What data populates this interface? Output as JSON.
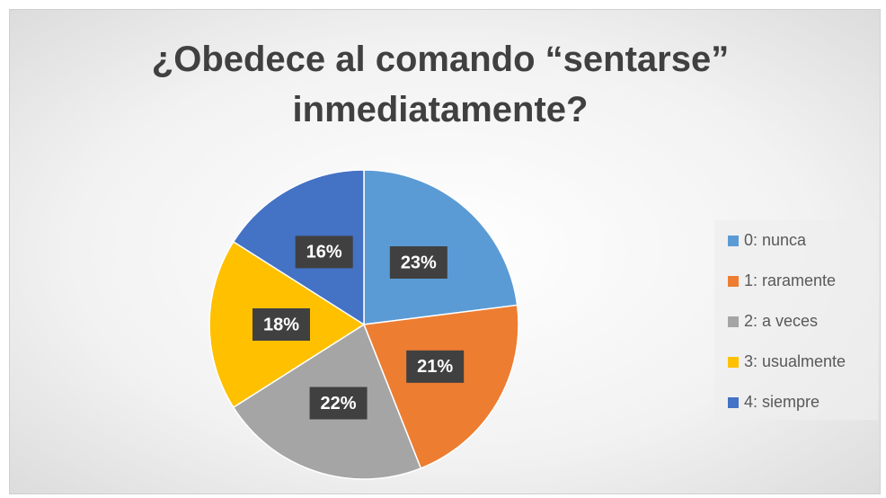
{
  "chart_data": {
    "type": "pie",
    "title": "¿Obedece al comando “sentarse” inmediatamente?",
    "categories": [
      "0: nunca",
      "1: raramente",
      "2: a veces",
      "3: usualmente",
      "4: siempre"
    ],
    "values": [
      23,
      21,
      22,
      18,
      16
    ],
    "value_labels": [
      "23%",
      "21%",
      "22%",
      "18%",
      "16%"
    ],
    "colors": [
      "#5b9bd5",
      "#ed7d31",
      "#a5a5a5",
      "#ffc000",
      "#4472c4"
    ],
    "legend": "right"
  }
}
